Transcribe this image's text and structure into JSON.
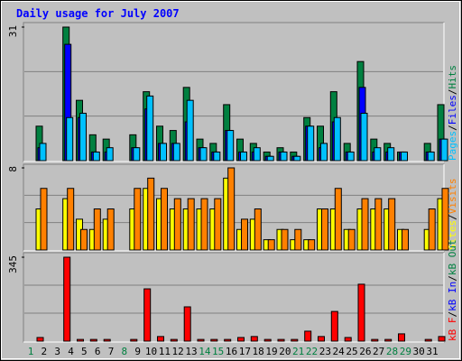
{
  "chart_data": [
    {
      "type": "bar",
      "title": "Daily usage for July 2007",
      "ylim": [
        0,
        31
      ],
      "yticks": [
        31
      ],
      "separator": "/",
      "series": [
        {
          "name": "Hits",
          "color": "#008040",
          "values": [
            8,
            0,
            31,
            14,
            6,
            5,
            0,
            6,
            16,
            8,
            7,
            17,
            5,
            4,
            13,
            5,
            4,
            2,
            3,
            2,
            10,
            8,
            16,
            4,
            23,
            5,
            4,
            2,
            0,
            4,
            13
          ]
        },
        {
          "name": "Files",
          "color": "#0000FF",
          "values": [
            3,
            0,
            27,
            10,
            2,
            2,
            0,
            3,
            12,
            4,
            4,
            9,
            3,
            2,
            7,
            2,
            2,
            1,
            2,
            1,
            8,
            3,
            9,
            2,
            17,
            2,
            2,
            2,
            0,
            2,
            5
          ]
        },
        {
          "name": "Pages",
          "color": "#00C0FF",
          "values": [
            4,
            0,
            10,
            11,
            2,
            3,
            0,
            3,
            15,
            4,
            4,
            14,
            3,
            2,
            7,
            2,
            3,
            1,
            2,
            1,
            8,
            4,
            10,
            2,
            11,
            3,
            3,
            2,
            0,
            2,
            5
          ]
        }
      ]
    },
    {
      "type": "bar",
      "ylim": [
        0,
        8
      ],
      "yticks": [
        8
      ],
      "separator": "/",
      "series": [
        {
          "name": "Sites",
          "color": "#FFFF00",
          "values": [
            4,
            0,
            5,
            3,
            2,
            3,
            0,
            4,
            6,
            5,
            4,
            4,
            4,
            4,
            7,
            2,
            3,
            1,
            2,
            1,
            1,
            4,
            4,
            2,
            4,
            4,
            4,
            2,
            0,
            2,
            5
          ]
        },
        {
          "name": "Visits",
          "color": "#FF8000",
          "values": [
            6,
            0,
            6,
            2,
            4,
            4,
            0,
            6,
            7,
            6,
            5,
            5,
            5,
            5,
            8,
            3,
            4,
            1,
            2,
            2,
            1,
            4,
            6,
            2,
            5,
            5,
            5,
            2,
            0,
            4,
            6
          ]
        }
      ]
    },
    {
      "type": "bar",
      "ylim": [
        0,
        345
      ],
      "yticks": [
        345
      ],
      "separator": "/",
      "categories": [
        "1",
        "2",
        "3",
        "4",
        "5",
        "6",
        "7",
        "8",
        "9",
        "10",
        "11",
        "12",
        "13",
        "14",
        "15",
        "16",
        "17",
        "18",
        "19",
        "20",
        "21",
        "22",
        "23",
        "24",
        "25",
        "26",
        "27",
        "28",
        "29",
        "30",
        "31"
      ],
      "category_colors": [
        "#008040",
        "#000000",
        "#000000",
        "#000000",
        "#000000",
        "#000000",
        "#000000",
        "#008040",
        "#000000",
        "#000000",
        "#000000",
        "#000000",
        "#000000",
        "#008040",
        "#008040",
        "#000000",
        "#000000",
        "#000000",
        "#000000",
        "#000000",
        "#008040",
        "#008040",
        "#000000",
        "#000000",
        "#000000",
        "#000000",
        "#000000",
        "#008040",
        "#008040",
        "#000000",
        "#000000"
      ],
      "series": [
        {
          "name": "kB F",
          "color": "#FF0000",
          "values": [
            15,
            0,
            345,
            7,
            7,
            7,
            0,
            7,
            215,
            19,
            7,
            141,
            7,
            7,
            7,
            15,
            19,
            7,
            7,
            7,
            41,
            19,
            122,
            15,
            234,
            7,
            7,
            30,
            0,
            7,
            19
          ]
        }
      ],
      "legend_extra": [
        {
          "name": "kB In",
          "color": "#0000FF"
        },
        {
          "name": "kB Out",
          "color": "#008040"
        }
      ]
    }
  ]
}
